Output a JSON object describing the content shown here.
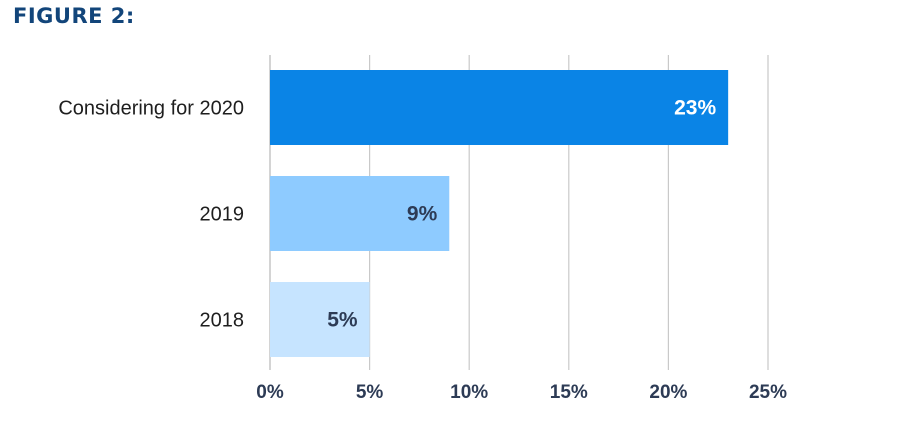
{
  "figure_title": "FIGURE 2:",
  "colors": {
    "title": "#12457a",
    "grid": "#c9c9c9",
    "tick_text": "#2d3b55"
  },
  "chart_data": {
    "type": "bar",
    "orientation": "horizontal",
    "title": "",
    "xlabel": "",
    "ylabel": "",
    "categories": [
      "Considering for 2020",
      "2019",
      "2018"
    ],
    "values": [
      23,
      9,
      5
    ],
    "value_labels": [
      "23%",
      "9%",
      "5%"
    ],
    "bar_colors": [
      "#0a84e6",
      "#8ecbff",
      "#c6e4ff"
    ],
    "label_colors": [
      "#ffffff",
      "#2d3b55",
      "#2d3b55"
    ],
    "xlim": [
      0,
      25
    ],
    "x_ticks": [
      0,
      5,
      10,
      15,
      20,
      25
    ],
    "x_tick_labels": [
      "0%",
      "5%",
      "10%",
      "15%",
      "20%",
      "25%"
    ],
    "grid": true,
    "legend": "none"
  }
}
